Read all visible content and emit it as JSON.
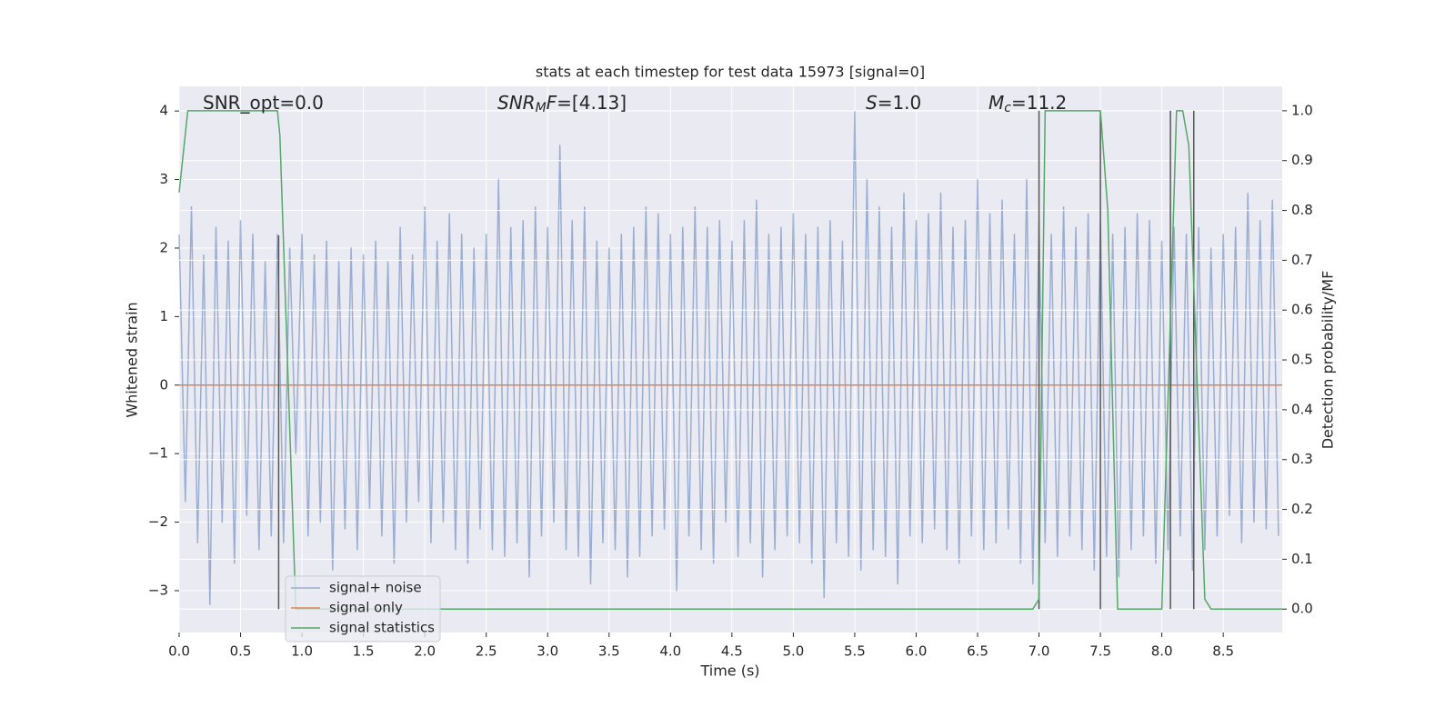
{
  "chart_data": {
    "type": "line",
    "title": "stats at each timestep for test data 15973 [signal=0]",
    "xlabel": "Time (s)",
    "ylabel": "Whitened strain",
    "y2label": "Detection probability/MF",
    "xlim": [
      0,
      8.98
    ],
    "ylim": [
      -3.61,
      4.36
    ],
    "y2lim": [
      -0.047,
      1.049
    ],
    "xticks": [
      {
        "value": 0,
        "label": "0.0"
      },
      0.5,
      {
        "value": 1,
        "label": "1.0"
      },
      1.5,
      {
        "value": 2,
        "label": "2.0"
      },
      2.5,
      {
        "value": 3,
        "label": "3.0"
      },
      3.5,
      {
        "value": 4,
        "label": "4.0"
      },
      4.5,
      {
        "value": 5,
        "label": "5.0"
      },
      5.5,
      {
        "value": 6,
        "label": "6.0"
      },
      6.5,
      {
        "value": 7,
        "label": "7.0"
      },
      7.5,
      {
        "value": 8,
        "label": "8.0"
      },
      8.5
    ],
    "yticks": [
      {
        "value": -3,
        "label": "−3"
      },
      {
        "value": -2,
        "label": "−2"
      },
      {
        "value": -1,
        "label": "−1"
      },
      0,
      1,
      2,
      3,
      4
    ],
    "y2ticks": [
      {
        "value": 0,
        "label": "0.0"
      },
      0.1,
      0.2,
      0.3,
      0.4,
      0.5,
      0.6,
      0.7,
      0.8,
      0.9,
      {
        "value": 1,
        "label": "1.0"
      }
    ],
    "grid": true,
    "y2grid": true,
    "legend": "lower left",
    "series": [
      {
        "name": "signal+ noise",
        "color": "#4c72b0",
        "opacity": 0.5,
        "x": [
          0,
          0.05,
          0.1,
          0.15,
          0.2,
          0.25,
          0.3,
          0.35,
          0.4,
          0.45,
          0.5,
          0.55,
          0.6,
          0.65,
          0.7,
          0.75,
          0.8,
          0.85,
          0.9,
          0.95,
          1,
          1.05,
          1.1,
          1.15,
          1.2,
          1.25,
          1.3,
          1.35,
          1.4,
          1.45,
          1.5,
          1.55,
          1.6,
          1.65,
          1.7,
          1.75,
          1.8,
          1.85,
          1.9,
          1.95,
          2,
          2.05,
          2.1,
          2.15,
          2.2,
          2.25,
          2.3,
          2.35,
          2.4,
          2.45,
          2.5,
          2.55,
          2.6,
          2.65,
          2.7,
          2.75,
          2.8,
          2.85,
          2.9,
          2.95,
          3,
          3.05,
          3.1,
          3.15,
          3.2,
          3.25,
          3.3,
          3.35,
          3.4,
          3.45,
          3.5,
          3.55,
          3.6,
          3.65,
          3.7,
          3.75,
          3.8,
          3.85,
          3.9,
          3.95,
          4,
          4.05,
          4.1,
          4.15,
          4.2,
          4.25,
          4.3,
          4.35,
          4.4,
          4.45,
          4.5,
          4.55,
          4.6,
          4.65,
          4.7,
          4.75,
          4.8,
          4.85,
          4.9,
          4.95,
          5,
          5.05,
          5.1,
          5.15,
          5.2,
          5.25,
          5.3,
          5.35,
          5.4,
          5.45,
          5.5,
          5.55,
          5.6,
          5.65,
          5.7,
          5.75,
          5.8,
          5.85,
          5.9,
          5.95,
          6,
          6.05,
          6.1,
          6.15,
          6.2,
          6.25,
          6.3,
          6.35,
          6.4,
          6.45,
          6.5,
          6.55,
          6.6,
          6.65,
          6.7,
          6.75,
          6.8,
          6.85,
          6.9,
          6.95,
          7,
          7.05,
          7.1,
          7.15,
          7.2,
          7.25,
          7.3,
          7.35,
          7.4,
          7.45,
          7.5,
          7.55,
          7.6,
          7.65,
          7.7,
          7.75,
          7.8,
          7.85,
          7.9,
          7.95,
          8,
          8.05,
          8.1,
          8.15,
          8.2,
          8.25,
          8.3,
          8.35,
          8.4,
          8.45,
          8.5,
          8.55,
          8.6,
          8.65,
          8.7,
          8.75,
          8.8,
          8.85,
          8.9,
          8.95
        ],
        "values": [
          2.2,
          -1.7,
          2.6,
          -2.3,
          1.9,
          -3.2,
          2.3,
          -2.0,
          2.1,
          -2.6,
          2.4,
          -1.9,
          2.2,
          -2.4,
          1.8,
          -2.2,
          2.2,
          -2.3,
          2.0,
          -1.0,
          2.2,
          -2.2,
          1.9,
          -2.0,
          2.1,
          -2.7,
          1.8,
          -2.1,
          2.0,
          -2.4,
          1.9,
          -1.8,
          2.1,
          -2.2,
          1.8,
          -2.6,
          2.3,
          -2.0,
          1.9,
          -1.7,
          2.6,
          -2.3,
          2.1,
          -2.0,
          2.5,
          -2.4,
          2.2,
          -2.6,
          2.0,
          -2.1,
          2.2,
          -2.4,
          3.0,
          -2.5,
          2.3,
          -2.3,
          2.4,
          -2.8,
          2.6,
          -2.2,
          2.3,
          -2.0,
          3.5,
          -2.4,
          2.4,
          -2.5,
          2.6,
          -2.9,
          2.1,
          -2.3,
          2.0,
          -2.4,
          2.2,
          -2.8,
          2.3,
          -2.5,
          2.6,
          -2.2,
          2.5,
          -2.1,
          2.2,
          -3.0,
          2.3,
          -2.2,
          2.6,
          -2.4,
          2.3,
          -2.6,
          2.4,
          -2.0,
          2.1,
          -2.5,
          2.4,
          -2.3,
          2.7,
          -2.8,
          2.2,
          -2.4,
          2.3,
          -2.2,
          2.5,
          -2.3,
          2.2,
          -2.6,
          2.3,
          -3.1,
          2.4,
          -2.3,
          2.1,
          -2.5,
          4.0,
          -2.7,
          3.0,
          -2.4,
          2.6,
          -2.5,
          2.3,
          -2.9,
          2.8,
          -2.2,
          2.4,
          -2.3,
          2.5,
          -2.1,
          2.8,
          -2.4,
          2.3,
          -2.6,
          2.4,
          -2.2,
          3.0,
          -2.4,
          2.5,
          -2.3,
          2.7,
          -2.1,
          2.2,
          -2.6,
          3.0,
          -2.9,
          2.4,
          -2.3,
          2.2,
          -2.5,
          2.6,
          -2.2,
          2.3,
          -2.4,
          2.5,
          -2.7,
          2.4,
          -2.5,
          2.2,
          -2.8,
          2.3,
          -2.4,
          2.5,
          -2.2,
          2.4,
          -2.6,
          2.1,
          -2.4,
          2.3,
          -2.2,
          2.2,
          -2.7,
          2.3,
          -2.4,
          2.0,
          -2.2,
          2.2,
          -1.9,
          2.3,
          -2.3,
          2.8,
          -2.0,
          2.4,
          -2.1,
          2.7,
          -2.2
        ]
      },
      {
        "name": "signal only",
        "color": "#dd8452",
        "x": [
          0,
          8.98
        ],
        "values": [
          0,
          0
        ]
      },
      {
        "name": "signal statistics",
        "color": "#55a868",
        "axis": "y2",
        "x": [
          0,
          0.07,
          0.12,
          0.8,
          0.82,
          0.95,
          6.95,
          7.0,
          7.05,
          7.5,
          7.56,
          7.64,
          8.0,
          8.12,
          8.17,
          8.22,
          8.35,
          8.4,
          8.98
        ],
        "values": [
          0.836,
          1.0,
          1.0,
          1.0,
          0.95,
          0.0,
          0.0,
          0.02,
          1.0,
          1.0,
          0.8,
          0.0,
          0.0,
          1.0,
          1.0,
          0.93,
          0.02,
          0.0,
          0.0
        ]
      }
    ],
    "vlines": {
      "color": "#555555",
      "axis": "y2",
      "x": [
        0.81,
        7.0,
        7.5,
        8.07,
        8.26
      ],
      "ymin": 0,
      "ymax": [
        0.75,
        1,
        1,
        1,
        1
      ]
    },
    "annotations": [
      {
        "parts": [
          {
            "text": "SNR_opt=0.0"
          }
        ]
      },
      {
        "parts": [
          {
            "text": "SNR",
            "style": "italic"
          },
          {
            "text": "M",
            "style": "italic-sub"
          },
          {
            "text": "F",
            "style": "italic"
          },
          {
            "text": "=[4.13]"
          }
        ]
      },
      {
        "parts": [
          {
            "text": "S",
            "style": "italic"
          },
          {
            "text": "=1.0"
          }
        ]
      },
      {
        "parts": [
          {
            "text": "M",
            "style": "italic"
          },
          {
            "text": "c",
            "style": "italic-sub"
          },
          {
            "text": "=11.2"
          }
        ]
      }
    ]
  }
}
